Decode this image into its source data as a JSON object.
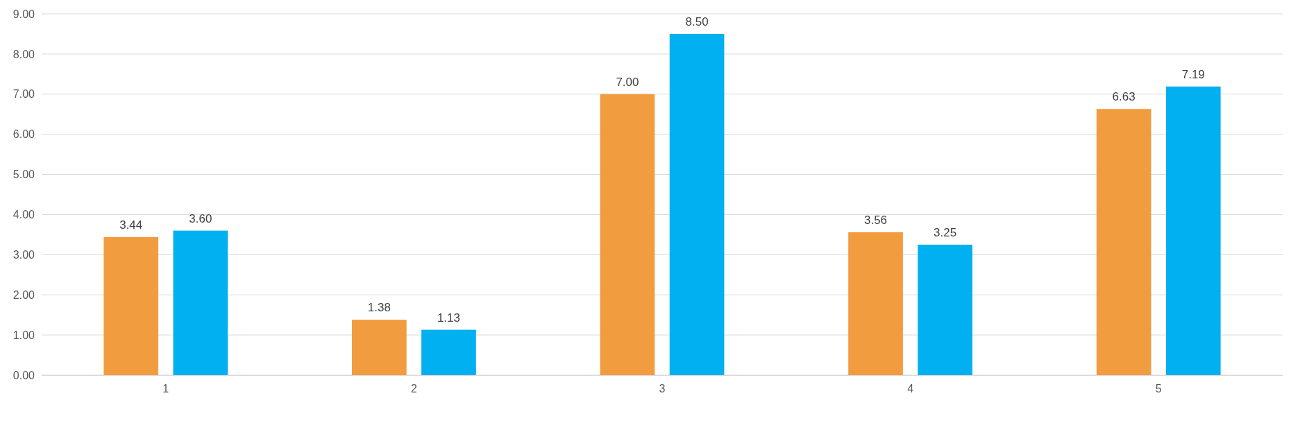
{
  "chart_data": {
    "type": "bar",
    "categories": [
      "1",
      "2",
      "3",
      "4",
      "5"
    ],
    "series": [
      {
        "color": "#f19c3f",
        "values": [
          3.44,
          1.38,
          7.0,
          3.56,
          6.63
        ],
        "value_labels": [
          "3.44",
          "1.38",
          "7.00",
          "3.56",
          "6.63"
        ]
      },
      {
        "color": "#00b0f0",
        "values": [
          3.6,
          1.13,
          8.5,
          3.25,
          7.19
        ],
        "value_labels": [
          "3.60",
          "1.13",
          "8.50",
          "3.25",
          "7.19"
        ]
      }
    ],
    "ylim": [
      0,
      9
    ],
    "yticks": [
      {
        "value": 0,
        "label": "0.00"
      },
      {
        "value": 1,
        "label": "1.00"
      },
      {
        "value": 2,
        "label": "2.00"
      },
      {
        "value": 3,
        "label": "3.00"
      },
      {
        "value": 4,
        "label": "4.00"
      },
      {
        "value": 5,
        "label": "5.00"
      },
      {
        "value": 6,
        "label": "6.00"
      },
      {
        "value": 7,
        "label": "7.00"
      },
      {
        "value": 8,
        "label": "8.00"
      },
      {
        "value": 9,
        "label": "9.00"
      }
    ],
    "grid": "y"
  }
}
